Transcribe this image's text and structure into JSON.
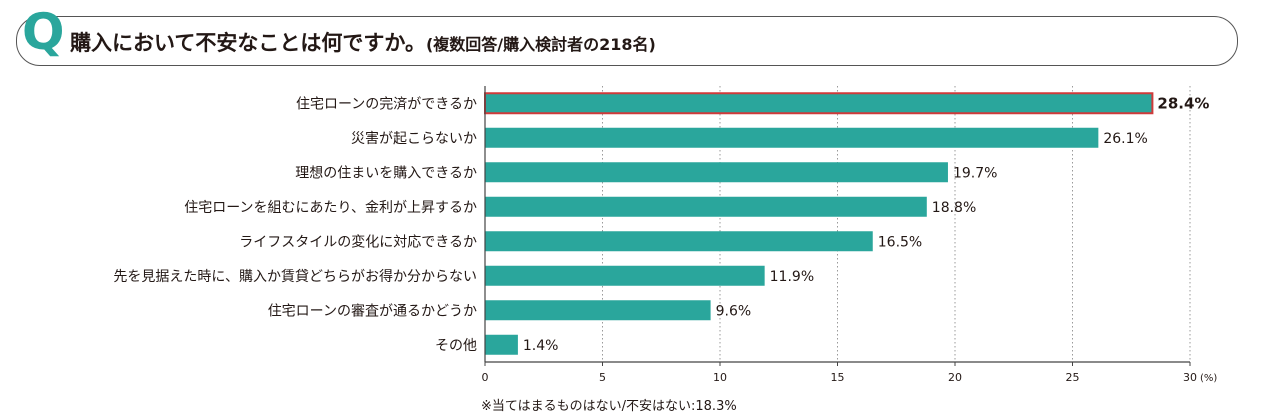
{
  "question": {
    "letter": "Q",
    "title": "購入において不安なことは何ですか。",
    "subtitle": "(複数回答/購入検討者の218名)"
  },
  "colors": {
    "bar": "#2aa69c",
    "highlight_border": "#d03a3a",
    "text": "#231815",
    "grid": "#9a9a9a"
  },
  "chart_data": {
    "type": "bar",
    "orientation": "horizontal",
    "categories": [
      "住宅ローンの完済ができるか",
      "災害が起こらないか",
      "理想の住まいを購入できるか",
      "住宅ローンを組むにあたり、金利が上昇するか",
      "ライフスタイルの変化に対応できるか",
      "先を見据えた時に、購入か賃貸どちらがお得か分からない",
      "住宅ローンの審査が通るかどうか",
      "その他"
    ],
    "values": [
      28.4,
      26.1,
      19.7,
      18.8,
      16.5,
      11.9,
      9.6,
      1.4
    ],
    "value_labels": [
      "28.4%",
      "26.1%",
      "19.7%",
      "18.8%",
      "16.5%",
      "11.9%",
      "9.6%",
      "1.4%"
    ],
    "highlight_index": 0,
    "xlim": [
      0,
      30
    ],
    "xticks": [
      0,
      5,
      10,
      15,
      20,
      25,
      30
    ],
    "xtick_labels": [
      "0",
      "5",
      "10",
      "15",
      "20",
      "25",
      "30"
    ],
    "xunit": "(%)",
    "grid": true,
    "legend": "none"
  },
  "footnote": "※当てはまるものはない/不安はない:18.3%"
}
